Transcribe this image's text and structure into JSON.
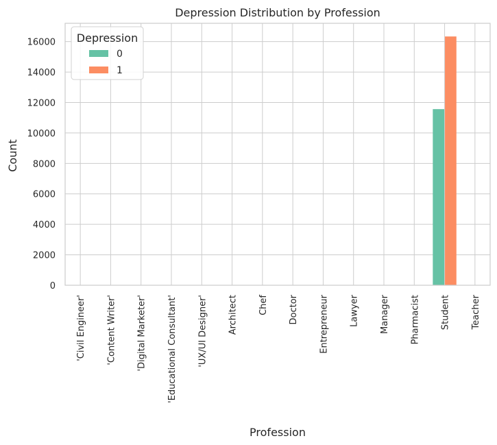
{
  "chart_data": {
    "type": "bar",
    "title": "Depression Distribution by Profession",
    "xlabel": "Profession",
    "ylabel": "Count",
    "ylim": [
      0,
      17200
    ],
    "yticks": [
      0,
      2000,
      4000,
      6000,
      8000,
      10000,
      12000,
      14000,
      16000
    ],
    "grid": true,
    "legend_title": "Depression",
    "legend_position": "top-left",
    "categories": [
      "'Civil Engineer'",
      "'Content Writer'",
      "'Digital Marketer'",
      "'Educational Consultant'",
      "'UX/UI Designer'",
      "Architect",
      "Chef",
      "Doctor",
      "Entrepreneur",
      "Lawyer",
      "Manager",
      "Pharmacist",
      "Student",
      "Teacher"
    ],
    "series": [
      {
        "name": "0",
        "color": "#66c2a5",
        "values": [
          1,
          1,
          1,
          1,
          1,
          4,
          1,
          2,
          2,
          2,
          1,
          1,
          11565,
          4
        ]
      },
      {
        "name": "1",
        "color": "#fc8d62",
        "values": [
          0,
          0,
          0,
          0,
          0,
          4,
          1,
          0,
          1,
          0,
          0,
          1,
          16336,
          3
        ]
      }
    ]
  }
}
